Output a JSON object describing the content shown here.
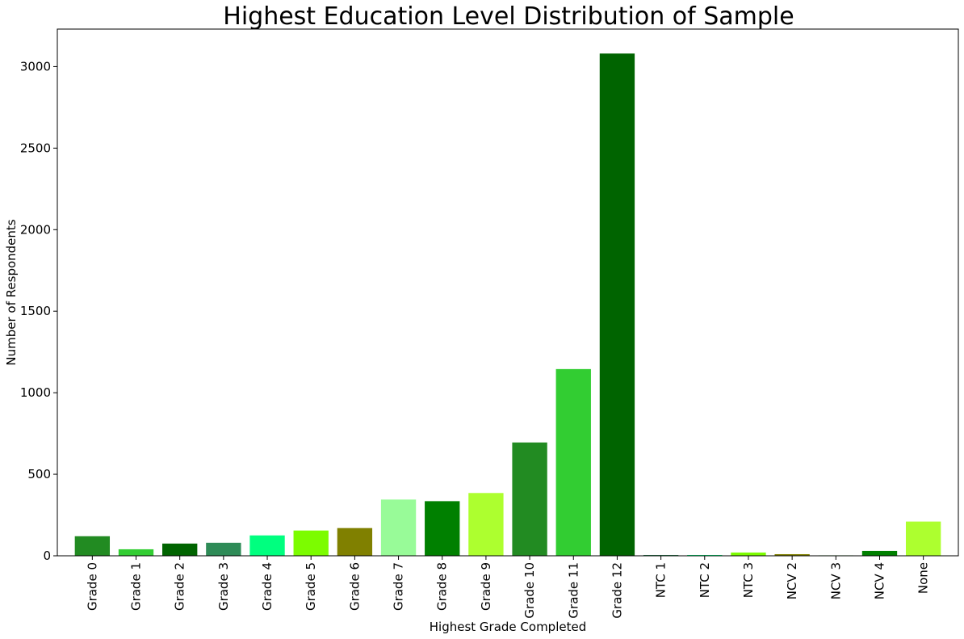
{
  "chart_data": {
    "type": "bar",
    "title": "Highest Education Level Distribution of Sample",
    "xlabel": "Highest Grade Completed",
    "ylabel": "Number of Respondents",
    "ylim": [
      0,
      3230
    ],
    "yticks": [
      0,
      500,
      1000,
      1500,
      2000,
      2500,
      3000
    ],
    "grid": false,
    "categories": [
      "Grade 0",
      "Grade 1",
      "Grade 2",
      "Grade 3",
      "Grade 4",
      "Grade 5",
      "Grade 6",
      "Grade 7",
      "Grade 8",
      "Grade 9",
      "Grade 10",
      "Grade 11",
      "Grade 12",
      "NTC 1",
      "NTC 2",
      "NTC 3",
      "NCV 2",
      "NCV 3",
      "NCV 4",
      "None"
    ],
    "values": [
      120,
      40,
      75,
      80,
      125,
      155,
      170,
      345,
      335,
      385,
      695,
      1145,
      3080,
      5,
      5,
      20,
      10,
      3,
      30,
      210
    ],
    "colors": [
      "#228b22",
      "#32cd32",
      "#006400",
      "#2e8b57",
      "#00ff7f",
      "#7cfc00",
      "#808000",
      "#98fb98",
      "#008000",
      "#adff2f",
      "#228b22",
      "#32cd32",
      "#006400",
      "#2e8b57",
      "#00ff7f",
      "#7cfc00",
      "#808000",
      "#98fb98",
      "#008000",
      "#adff2f"
    ]
  }
}
